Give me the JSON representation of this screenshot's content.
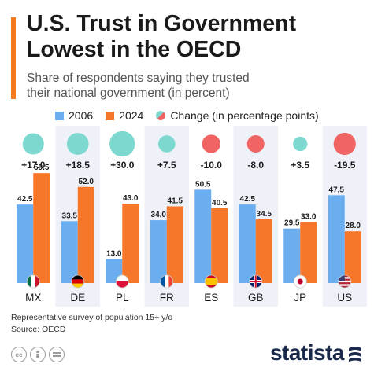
{
  "header": {
    "title_line1": "U.S. Trust in Government",
    "title_line2": "Lowest in the OECD",
    "subtitle_line1": "Share of respondents saying they trusted",
    "subtitle_line2": "their national government (in percent)"
  },
  "legend": {
    "items": [
      "2006",
      "2024",
      "Change (in percentage points)"
    ]
  },
  "colors": {
    "series_2006": "#6aaeef",
    "series_2024": "#f7772a",
    "positive_change": "#7dd8d0",
    "negative_change": "#f06464",
    "column_band": "#eef2f8",
    "accent": "#f47b20",
    "brand": "#1b2a4a"
  },
  "chart_data": {
    "type": "bar",
    "categories": [
      "MX",
      "DE",
      "PL",
      "FR",
      "ES",
      "GB",
      "JP",
      "US"
    ],
    "country_icons": [
      "flag-mexico-icon",
      "flag-germany-icon",
      "flag-poland-icon",
      "flag-france-icon",
      "flag-spain-icon",
      "flag-uk-icon",
      "flag-japan-icon",
      "flag-usa-icon"
    ],
    "series": [
      {
        "name": "2006",
        "values": [
          42.5,
          33.5,
          13.0,
          34.0,
          50.5,
          42.5,
          29.5,
          47.5
        ]
      },
      {
        "name": "2024",
        "values": [
          59.5,
          52.0,
          43.0,
          41.5,
          40.5,
          34.5,
          33.0,
          28.0
        ]
      }
    ],
    "change": {
      "name": "Change (in percentage points)",
      "values": [
        17.0,
        18.5,
        30.0,
        7.5,
        -10.0,
        -8.0,
        3.5,
        -19.5
      ],
      "labels": [
        "+17.0",
        "+18.5",
        "+30.0",
        "+7.5",
        "-10.0",
        "-8.0",
        "+3.5",
        "-19.5"
      ]
    },
    "value_labels": {
      "2006": [
        "42.5",
        "33.5",
        "13.0",
        "34.0",
        "50.5",
        "42.5",
        "29.5",
        "47.5"
      ],
      "2024": [
        "59.5",
        "52.0",
        "43.0",
        "41.5",
        "40.5",
        "34.5",
        "33.0",
        "28.0"
      ]
    },
    "ylim": [
      0,
      60
    ],
    "grid": false,
    "legend_position": "top"
  },
  "footer": {
    "note": "Representative survey of population 15+ y/o",
    "source": "Source: OECD",
    "brand": "statista"
  }
}
